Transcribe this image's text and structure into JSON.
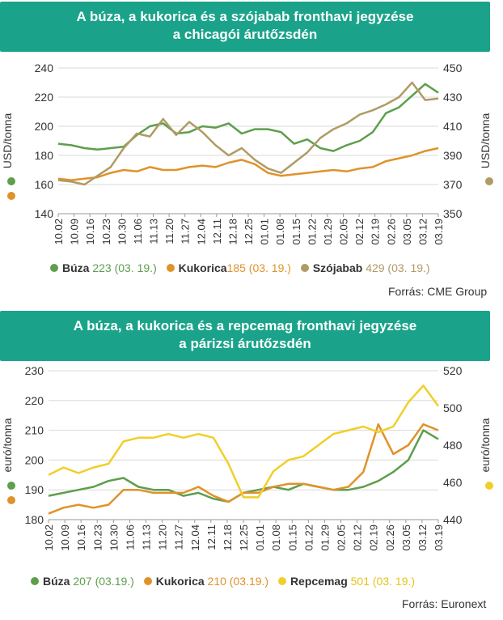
{
  "chart_data": [
    {
      "type": "line",
      "title_lines": [
        "A búza, a kukorica és a szójabab fronthavi jegyzése",
        "a chicagói árutőzsdén"
      ],
      "ylabel_left": "USD/tonna",
      "ylabel_right": "USD/tonna",
      "ylim_left": [
        140,
        240
      ],
      "ylim_right": [
        350,
        450
      ],
      "yticks_left": [
        140,
        160,
        180,
        200,
        220,
        240
      ],
      "yticks_right": [
        350,
        370,
        390,
        410,
        430,
        450
      ],
      "x_ticks": [
        "10.02",
        "10.09",
        "10.16",
        "10.23",
        "10.30",
        "11.06",
        "11.13",
        "11.20",
        "11.27",
        "12.04",
        "12.11",
        "12.18",
        "12.25",
        "01.01",
        "01.08",
        "01.15",
        "01.22",
        "01.29",
        "02.05",
        "02.12",
        "02.19",
        "02.26",
        "03.05",
        "03.12",
        "03.19"
      ],
      "grid": "horizontal",
      "series": [
        {
          "name": "Búza",
          "value_label": "223 (03. 19.)",
          "color": "#5e9e4c",
          "axis": "left",
          "values": [
            188,
            187,
            185,
            184,
            185,
            186,
            194,
            200,
            202,
            195,
            196,
            200,
            199,
            202,
            195,
            198,
            198,
            196,
            188,
            191,
            185,
            183,
            187,
            190,
            196,
            209,
            213,
            221,
            229,
            223
          ]
        },
        {
          "name": "Kukorica",
          "value_label": "185 (03. 19.)",
          "color": "#e0922a",
          "axis": "left",
          "values": [
            164,
            163,
            164,
            165,
            168,
            170,
            169,
            172,
            170,
            170,
            172,
            173,
            172,
            175,
            177,
            174,
            168,
            166,
            167,
            168,
            169,
            170,
            169,
            171,
            172,
            176,
            178,
            180,
            183,
            185
          ]
        },
        {
          "name": "Szójabab",
          "value_label": "429 (03. 19.)",
          "color": "#b09b64",
          "axis": "right",
          "values": [
            373,
            372,
            370,
            376,
            382,
            395,
            405,
            403,
            415,
            404,
            413,
            406,
            397,
            390,
            395,
            387,
            381,
            378,
            385,
            392,
            402,
            408,
            412,
            418,
            421,
            425,
            430,
            440,
            428,
            429
          ]
        }
      ],
      "source": "Forrás: CME Group"
    },
    {
      "type": "line",
      "title_lines": [
        "A búza, a kukorica és a repcemag fronthavi jegyzése",
        "a párizsi árutőzsdén"
      ],
      "ylabel_left": "euró/tonna",
      "ylabel_right": "euró/tonna",
      "ylim_left": [
        180,
        230
      ],
      "ylim_right": [
        440,
        520
      ],
      "yticks_left": [
        180,
        190,
        200,
        210,
        220,
        230
      ],
      "yticks_right": [
        440,
        460,
        480,
        500,
        520
      ],
      "x_ticks": [
        "10.02",
        "10.09",
        "10.16",
        "10.23",
        "10.30",
        "11.06",
        "11.13",
        "11.20",
        "11.27",
        "12.04",
        "12.11",
        "12.18",
        "12.25",
        "01.01",
        "01.08",
        "01.15",
        "01.22",
        "01.29",
        "02.05",
        "02.12",
        "02.19",
        "02.26",
        "03.05",
        "03.12",
        "03.19"
      ],
      "grid": "horizontal",
      "series": [
        {
          "name": "Búza",
          "value_label": "207 (03.19.)",
          "color": "#5e9e4c",
          "axis": "left",
          "values": [
            188,
            189,
            190,
            191,
            193,
            194,
            191,
            190,
            190,
            188,
            189,
            187,
            186,
            189,
            190,
            191,
            190,
            192,
            191,
            190,
            190,
            191,
            193,
            196,
            200,
            210,
            207
          ]
        },
        {
          "name": "Kukorica",
          "value_label": "210 (03.19.)",
          "color": "#e0922a",
          "axis": "left",
          "values": [
            182,
            184,
            185,
            184,
            185,
            190,
            190,
            189,
            189,
            189,
            191,
            188,
            186,
            189,
            189,
            191,
            192,
            192,
            191,
            190,
            191,
            196,
            212,
            202,
            205,
            212,
            210
          ]
        },
        {
          "name": "Repcemag",
          "value_label": "501 (03. 19.)",
          "color": "#f0cf2a",
          "axis": "right",
          "values": [
            464,
            468,
            465,
            468,
            470,
            482,
            484,
            484,
            486,
            484,
            486,
            484,
            470,
            452,
            452,
            466,
            472,
            474,
            480,
            486,
            488,
            490,
            487,
            490,
            503,
            512,
            501
          ]
        }
      ],
      "source": "Forrás: Euronext"
    }
  ]
}
